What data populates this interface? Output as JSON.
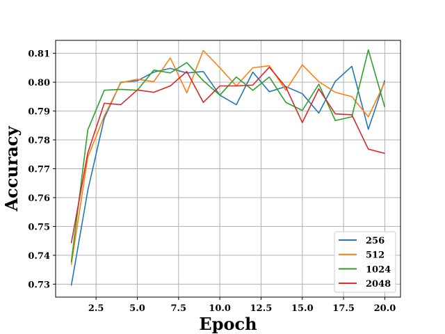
{
  "chart_data": {
    "type": "line",
    "title": "",
    "xlabel": "Epoch",
    "ylabel": "Accuracy",
    "xlim": [
      0.05,
      20.95
    ],
    "ylim": [
      0.7255,
      0.8145
    ],
    "x_ticks": [
      2.5,
      5.0,
      7.5,
      10.0,
      12.5,
      15.0,
      17.5,
      20.0
    ],
    "x_tick_labels": [
      "2.5",
      "5.0",
      "7.5",
      "10.0",
      "12.5",
      "15.0",
      "17.5",
      "20.0"
    ],
    "y_ticks": [
      0.73,
      0.74,
      0.75,
      0.76,
      0.77,
      0.78,
      0.79,
      0.8,
      0.81
    ],
    "y_tick_labels": [
      "0.73",
      "0.74",
      "0.75",
      "0.76",
      "0.77",
      "0.78",
      "0.79",
      "0.80",
      "0.81"
    ],
    "grid": true,
    "legend_position": "lower-right",
    "x": [
      1,
      2,
      3,
      4,
      5,
      6,
      7,
      8,
      9,
      10,
      11,
      12,
      13,
      14,
      15,
      16,
      17,
      18,
      19,
      20
    ],
    "series": [
      {
        "name": "256",
        "color": "#1f77b4",
        "values": [
          0.7295,
          0.7625,
          0.7875,
          0.8,
          0.8005,
          0.8035,
          0.8048,
          0.8032,
          0.8037,
          0.7955,
          0.7922,
          0.8035,
          0.7967,
          0.7985,
          0.796,
          0.7893,
          0.8003,
          0.8055,
          0.7837,
          0.8007
        ]
      },
      {
        "name": "512",
        "color": "#ff7f0e",
        "values": [
          0.7367,
          0.774,
          0.7883,
          0.7998,
          0.801,
          0.8002,
          0.8084,
          0.7963,
          0.811,
          0.805,
          0.7987,
          0.805,
          0.8057,
          0.7972,
          0.806,
          0.8002,
          0.7965,
          0.795,
          0.788,
          0.8
        ]
      },
      {
        "name": "1024",
        "color": "#2ca02c",
        "values": [
          0.7377,
          0.7835,
          0.7972,
          0.7975,
          0.7972,
          0.8042,
          0.8032,
          0.8068,
          0.8005,
          0.7955,
          0.8018,
          0.7972,
          0.8018,
          0.793,
          0.7902,
          0.7993,
          0.7867,
          0.788,
          0.8112,
          0.7913
        ]
      },
      {
        "name": "2048",
        "color": "#d62728",
        "values": [
          0.7442,
          0.7755,
          0.7927,
          0.7922,
          0.7973,
          0.7965,
          0.7987,
          0.8037,
          0.793,
          0.7987,
          0.7987,
          0.799,
          0.8052,
          0.7983,
          0.786,
          0.7977,
          0.789,
          0.7887,
          0.7768,
          0.7753
        ]
      }
    ]
  }
}
